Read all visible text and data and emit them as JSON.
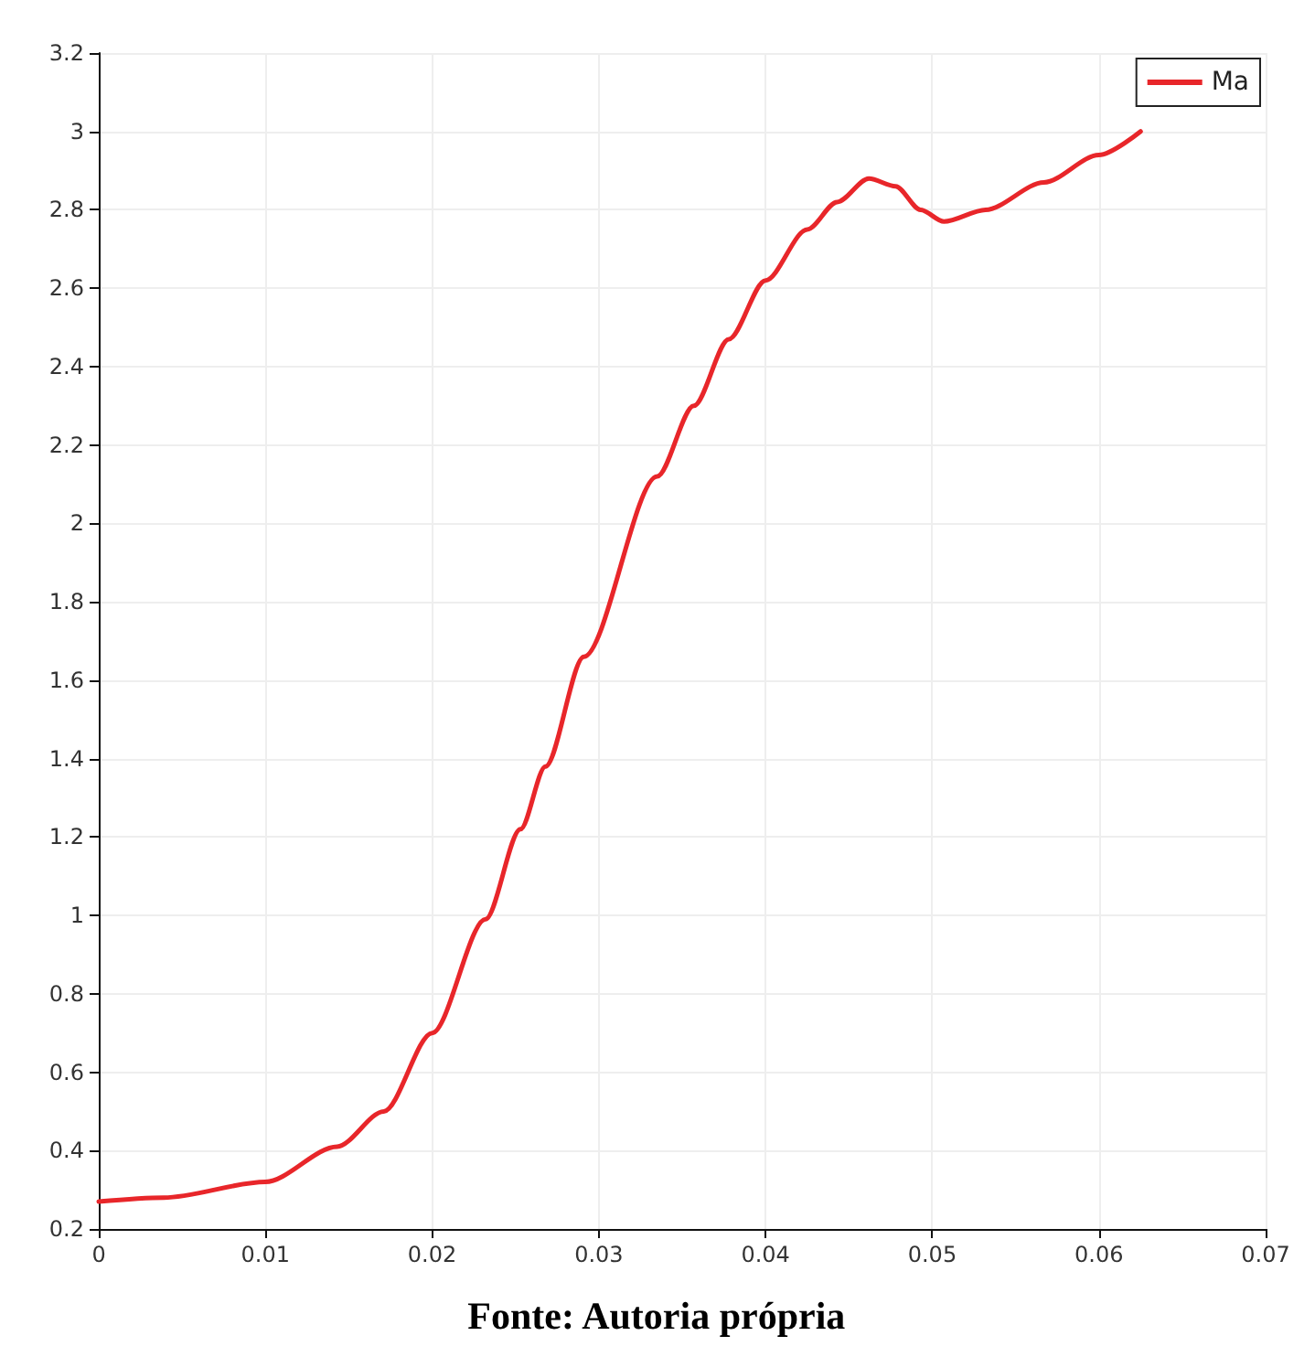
{
  "chart_data": {
    "type": "line",
    "x": [
      0,
      0.0039,
      0.01,
      0.0143,
      0.0171,
      0.02,
      0.0232,
      0.0253,
      0.0268,
      0.0291,
      0.0335,
      0.0357,
      0.0378,
      0.04,
      0.0425,
      0.0443,
      0.0462,
      0.0478,
      0.0493,
      0.0507,
      0.0532,
      0.0567,
      0.06,
      0.0625
    ],
    "series": [
      {
        "name": "Ma",
        "color": "#e8262a",
        "values": [
          0.27,
          0.28,
          0.32,
          0.41,
          0.5,
          0.7,
          0.99,
          1.22,
          1.38,
          1.66,
          2.12,
          2.3,
          2.47,
          2.62,
          2.75,
          2.82,
          2.88,
          2.86,
          2.8,
          2.77,
          2.8,
          2.87,
          2.94,
          3.0
        ]
      }
    ],
    "xlim": [
      0,
      0.07
    ],
    "xticks": [
      0,
      0.01,
      0.02,
      0.03,
      0.04,
      0.05,
      0.06,
      0.07
    ],
    "ylim": [
      0.2,
      3.2
    ],
    "yticks": [
      0.2,
      0.4,
      0.6,
      0.8,
      1,
      1.2,
      1.4,
      1.6,
      1.8,
      2,
      2.2,
      2.4,
      2.6,
      2.8,
      3,
      3.2
    ],
    "grid": true,
    "legend": "top right",
    "marker": "none",
    "line_style": "solid",
    "annotations": [
      "Fonte: Autoria própria"
    ]
  }
}
